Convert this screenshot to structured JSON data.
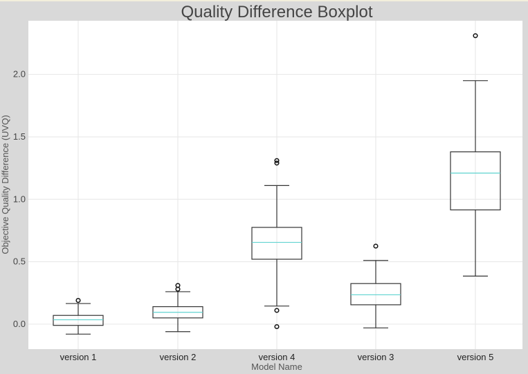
{
  "chart_data": {
    "type": "boxplot",
    "title": "Quality Difference Boxplot",
    "xlabel": "Model Name",
    "ylabel": "Objective Quality Difference (UVQ)",
    "ylim": [
      -0.2,
      2.43
    ],
    "yticks": [
      0.0,
      0.5,
      1.0,
      1.5,
      2.0
    ],
    "ytick_labels": [
      "0.0",
      "0.5",
      "1.0",
      "1.5",
      "2.0"
    ],
    "grid": true,
    "categories": [
      "version 1",
      "version 2",
      "version 4",
      "version 3",
      "version 5"
    ],
    "boxes": [
      {
        "name": "version 1",
        "whislo": -0.08,
        "q1": -0.01,
        "med": 0.035,
        "q3": 0.07,
        "whishi": 0.165,
        "fliers": [
          0.19
        ]
      },
      {
        "name": "version 2",
        "whislo": -0.06,
        "q1": 0.05,
        "med": 0.095,
        "q3": 0.14,
        "whishi": 0.26,
        "fliers": [
          0.28,
          0.31
        ]
      },
      {
        "name": "version 4",
        "whislo": 0.145,
        "q1": 0.52,
        "med": 0.655,
        "q3": 0.775,
        "whishi": 1.11,
        "fliers": [
          -0.02,
          0.11,
          1.29,
          1.31
        ]
      },
      {
        "name": "version 3",
        "whislo": -0.03,
        "q1": 0.155,
        "med": 0.235,
        "q3": 0.325,
        "whishi": 0.51,
        "fliers": [
          0.625
        ]
      },
      {
        "name": "version 5",
        "whislo": 0.385,
        "q1": 0.915,
        "med": 1.21,
        "q3": 1.38,
        "whishi": 1.95,
        "fliers": [
          2.31
        ]
      }
    ],
    "colors": {
      "box": "#333333",
      "median": "#5fd3d0",
      "grid": "#e6e6e6",
      "background": "#ffffff"
    }
  }
}
